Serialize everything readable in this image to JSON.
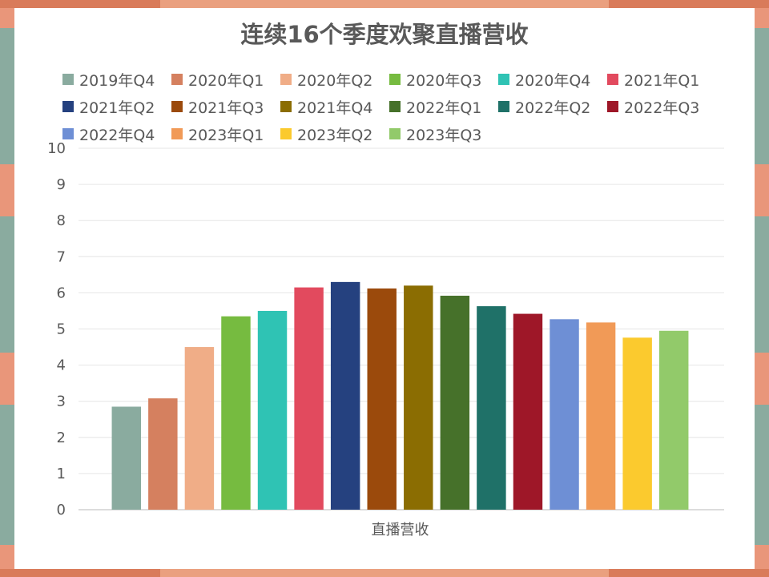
{
  "chart_data": {
    "type": "bar",
    "title": "连续16个季度欢聚直播营收",
    "categories": [
      "直播营收"
    ],
    "series": [
      {
        "name": "2019年Q4",
        "values": [
          2.85
        ],
        "color": "#8aab9f"
      },
      {
        "name": "2020年Q1",
        "values": [
          3.08
        ],
        "color": "#d5805f"
      },
      {
        "name": "2020年Q2",
        "values": [
          4.5
        ],
        "color": "#f0ad87"
      },
      {
        "name": "2020年Q3",
        "values": [
          5.35
        ],
        "color": "#76bb40"
      },
      {
        "name": "2020年Q4",
        "values": [
          5.5
        ],
        "color": "#2fc3b4"
      },
      {
        "name": "2021年Q1",
        "values": [
          6.15
        ],
        "color": "#e24a5e"
      },
      {
        "name": "2021年Q2",
        "values": [
          6.3
        ],
        "color": "#25417f"
      },
      {
        "name": "2021年Q3",
        "values": [
          6.12
        ],
        "color": "#9b4a0c"
      },
      {
        "name": "2021年Q4",
        "values": [
          6.2
        ],
        "color": "#8b6d02"
      },
      {
        "name": "2022年Q1",
        "values": [
          5.92
        ],
        "color": "#46712a"
      },
      {
        "name": "2022年Q2",
        "values": [
          5.63
        ],
        "color": "#1f7168"
      },
      {
        "name": "2022年Q3",
        "values": [
          5.42
        ],
        "color": "#9e1728"
      },
      {
        "name": "2022年Q4",
        "values": [
          5.27
        ],
        "color": "#6e8fd5"
      },
      {
        "name": "2023年Q1",
        "values": [
          5.18
        ],
        "color": "#f19a57"
      },
      {
        "name": "2023年Q2",
        "values": [
          4.76
        ],
        "color": "#fbca2e"
      },
      {
        "name": "2023年Q3",
        "values": [
          4.95
        ],
        "color": "#92ca6a"
      }
    ],
    "ylim": [
      0,
      10
    ],
    "yticks": [
      0,
      1,
      2,
      3,
      4,
      5,
      6,
      7,
      8,
      9,
      10
    ],
    "legend_position": "top",
    "grid": true
  }
}
